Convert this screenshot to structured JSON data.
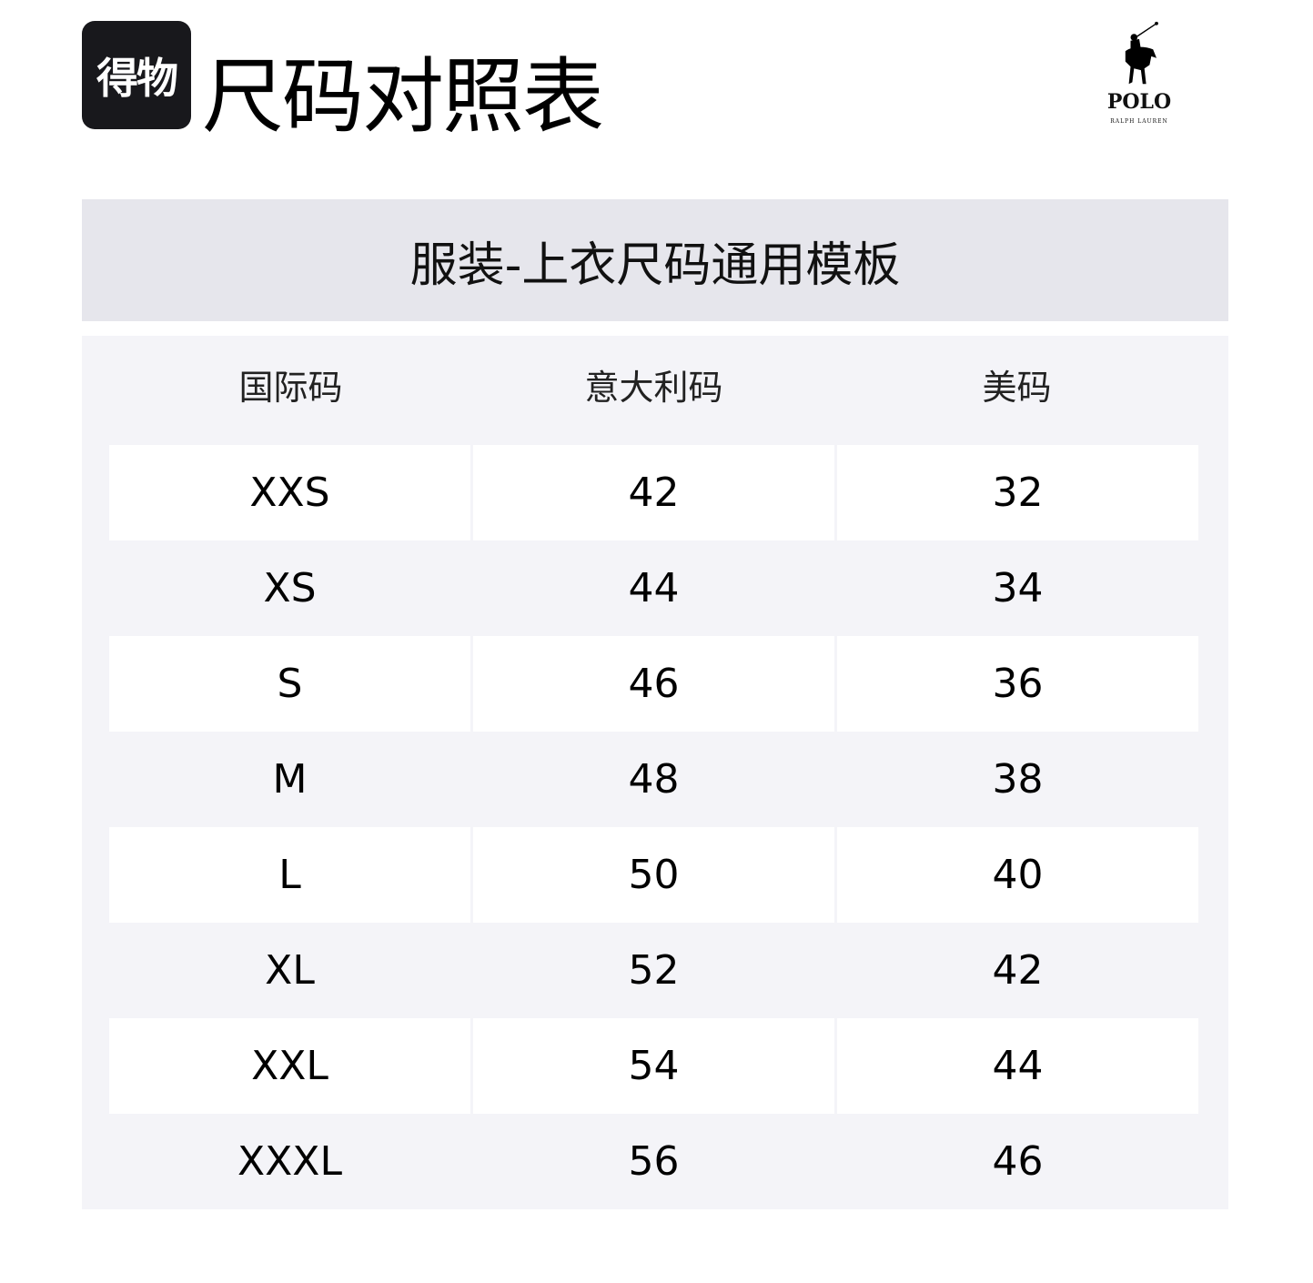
{
  "header": {
    "brand_logo": "得物",
    "title": "尺码对照表",
    "polo_logo": {
      "word": "POLO",
      "sub": "RALPH LAUREN"
    }
  },
  "banner": "服装-上衣尺码通用模板",
  "table": {
    "columns": [
      "国际码",
      "意大利码",
      "美码"
    ],
    "rows": [
      [
        "XXS",
        "42",
        "32"
      ],
      [
        "XS",
        "44",
        "34"
      ],
      [
        "S",
        "46",
        "36"
      ],
      [
        "M",
        "48",
        "38"
      ],
      [
        "L",
        "50",
        "40"
      ],
      [
        "XL",
        "52",
        "42"
      ],
      [
        "XXL",
        "54",
        "44"
      ],
      [
        "XXXL",
        "56",
        "46"
      ]
    ]
  }
}
